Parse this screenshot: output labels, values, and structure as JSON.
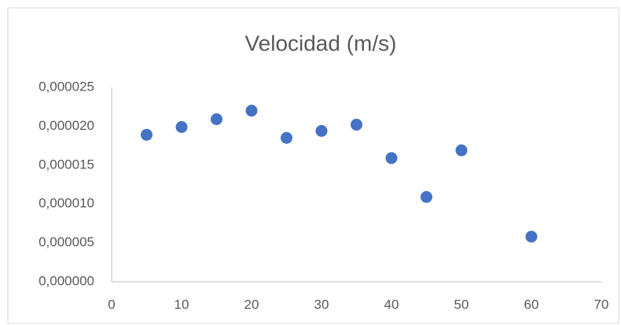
{
  "chart_data": {
    "type": "scatter",
    "title": "Velocidad (m/s)",
    "x": [
      5,
      10,
      15,
      20,
      25,
      30,
      35,
      40,
      45,
      50,
      60
    ],
    "values": [
      1.89e-05,
      1.99e-05,
      2.09e-05,
      2.2e-05,
      1.85e-05,
      1.94e-05,
      2.02e-05,
      1.59e-05,
      1.09e-05,
      1.69e-05,
      5.8e-06
    ],
    "color": "#4472c4",
    "xlim": [
      0,
      70
    ],
    "xticks": [
      0,
      10,
      20,
      30,
      40,
      50,
      60,
      70
    ],
    "ylim": [
      0,
      2.5e-05
    ],
    "yticks": [
      {
        "value": 0,
        "label": "0,000000"
      },
      {
        "value": 5e-06,
        "label": "0,000005"
      },
      {
        "value": 1e-05,
        "label": "0,000010"
      },
      {
        "value": 1.5e-05,
        "label": "0,000015"
      },
      {
        "value": 2e-05,
        "label": "0,000020"
      },
      {
        "value": 2.5e-05,
        "label": "0,000025"
      }
    ],
    "grid": false
  }
}
